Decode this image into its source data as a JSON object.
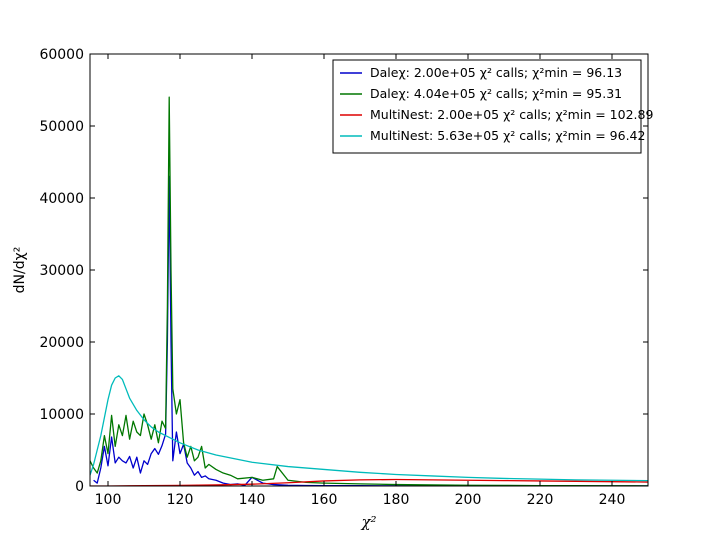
{
  "chart_data": {
    "type": "line",
    "xlabel": "χ²",
    "ylabel": "dN/dχ²",
    "xlim": [
      95,
      250
    ],
    "ylim": [
      0,
      60000
    ],
    "x_ticks": [
      "100",
      "120",
      "140",
      "160",
      "180",
      "200",
      "220",
      "240"
    ],
    "y_ticks": [
      "0",
      "10000",
      "20000",
      "30000",
      "40000",
      "50000",
      "60000"
    ],
    "legend_position": "top-right",
    "legend": [
      "Daleχ: 2.00e+05 χ² calls; χ²min = 96.13",
      "Daleχ: 4.04e+05 χ² calls; χ²min = 95.31",
      "MultiNest: 2.00e+05 χ² calls; χ²min = 102.89",
      "MultiNest: 5.63e+05 χ² calls; χ²min = 96.42"
    ],
    "series": [
      {
        "color": "#0000cc",
        "x": [
          96,
          97,
          98,
          99,
          100,
          101,
          102,
          103,
          104,
          105,
          106,
          107,
          108,
          109,
          110,
          111,
          112,
          113,
          114,
          115,
          116,
          116.5,
          117,
          117.5,
          118,
          119,
          120,
          121,
          122,
          123,
          124,
          125,
          126,
          127,
          128,
          130,
          132,
          134,
          136,
          138,
          140,
          143,
          146,
          150,
          155,
          160,
          170,
          180,
          190,
          200,
          210,
          220,
          230,
          240,
          250
        ],
        "y": [
          800,
          400,
          2500,
          5500,
          2800,
          6800,
          3200,
          4000,
          3500,
          3200,
          4100,
          2500,
          4000,
          1800,
          3500,
          3000,
          4500,
          5200,
          4400,
          5600,
          7200,
          20000,
          43000,
          20000,
          3500,
          7500,
          4500,
          5800,
          3200,
          2500,
          1500,
          2000,
          1200,
          1400,
          1000,
          800,
          400,
          200,
          300,
          100,
          1200,
          400,
          200,
          100,
          60,
          50,
          40,
          30,
          20,
          10,
          10,
          5,
          5,
          5,
          5
        ]
      },
      {
        "color": "#007700",
        "x": [
          95,
          96,
          97,
          98,
          99,
          100,
          101,
          102,
          103,
          104,
          105,
          106,
          107,
          108,
          109,
          110,
          111,
          112,
          113,
          114,
          115,
          116,
          116.5,
          117,
          117.5,
          118,
          119,
          120,
          121,
          122,
          123,
          124,
          125,
          126,
          127,
          128,
          130,
          132,
          134,
          136,
          140,
          143,
          146,
          147,
          150,
          155,
          160,
          170,
          180,
          190,
          200,
          210,
          220,
          230,
          240,
          250
        ],
        "y": [
          3500,
          2500,
          1800,
          3500,
          7000,
          4500,
          9800,
          5500,
          8500,
          7000,
          9800,
          6500,
          9000,
          7500,
          7000,
          10000,
          8500,
          6500,
          8500,
          6000,
          9000,
          8000,
          25000,
          54000,
          30000,
          13500,
          10000,
          12000,
          6000,
          4000,
          5500,
          3500,
          4000,
          5500,
          2500,
          3000,
          2300,
          1800,
          1500,
          1000,
          1200,
          800,
          1000,
          2700,
          800,
          500,
          400,
          300,
          200,
          150,
          100,
          80,
          50,
          40,
          30,
          20
        ]
      },
      {
        "color": "#dd0000",
        "x": [
          95,
          100,
          110,
          120,
          130,
          140,
          150,
          160,
          170,
          180,
          190,
          200,
          210,
          220,
          230,
          240,
          250
        ],
        "y": [
          0,
          0,
          50,
          80,
          150,
          250,
          450,
          700,
          850,
          900,
          850,
          800,
          750,
          700,
          650,
          600,
          550
        ]
      },
      {
        "color": "#00bbbb",
        "x": [
          95,
          96,
          97,
          98,
          99,
          100,
          101,
          102,
          103,
          104,
          105,
          106,
          108,
          110,
          112,
          114,
          116,
          118,
          120,
          122,
          125,
          130,
          135,
          140,
          150,
          160,
          170,
          180,
          190,
          200,
          210,
          220,
          230,
          240,
          250
        ],
        "y": [
          1500,
          3000,
          5000,
          7000,
          9500,
          12000,
          14000,
          15000,
          15300,
          14800,
          13500,
          12200,
          10500,
          9200,
          8200,
          7500,
          7000,
          6500,
          6000,
          5600,
          5000,
          4300,
          3800,
          3300,
          2700,
          2300,
          1900,
          1600,
          1400,
          1200,
          1050,
          950,
          850,
          800,
          750
        ]
      }
    ]
  }
}
